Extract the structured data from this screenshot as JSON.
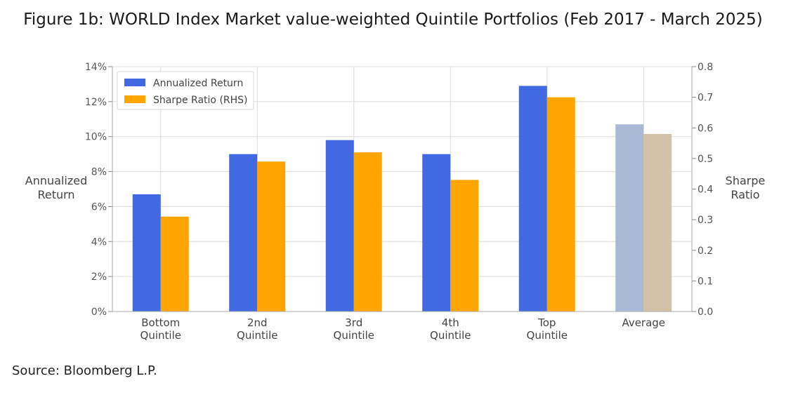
{
  "title": "Figure 1b: WORLD Index Market value-weighted Quintile Portfolios (Feb 2017 - March 2025)",
  "source": "Source: Bloomberg L.P.",
  "chart_data": {
    "type": "bar",
    "categories": [
      [
        "Bottom",
        "Quintile"
      ],
      [
        "2nd",
        "Quintile"
      ],
      [
        "3rd",
        "Quintile"
      ],
      [
        "4th",
        "Quintile"
      ],
      [
        "Top",
        "Quintile"
      ],
      [
        "Average"
      ]
    ],
    "series": [
      {
        "name": "Annualized Return",
        "axis": "left",
        "color": "#4169e1",
        "values": [
          6.7,
          9.0,
          9.8,
          9.0,
          12.9,
          10.7
        ]
      },
      {
        "name": "Sharpe Ratio (RHS)",
        "axis": "right",
        "color": "#ffa500",
        "values": [
          0.31,
          0.49,
          0.52,
          0.43,
          0.7,
          0.58
        ]
      }
    ],
    "highlight_colors": {
      "Average": [
        "#a9b8d4",
        "#d2c1a6"
      ]
    },
    "ylabel_left": [
      "Annualized",
      "Return"
    ],
    "ylabel_right": [
      "Sharpe",
      "Ratio"
    ],
    "ylim_left": [
      0,
      14
    ],
    "yticks_left": [
      "0%",
      "2%",
      "4%",
      "6%",
      "8%",
      "10%",
      "12%",
      "14%"
    ],
    "ylim_right": [
      0,
      0.8
    ],
    "yticks_right": [
      "0.0",
      "0.1",
      "0.2",
      "0.3",
      "0.4",
      "0.5",
      "0.6",
      "0.7",
      "0.8"
    ],
    "grid": true,
    "legend_position": "top-left"
  }
}
